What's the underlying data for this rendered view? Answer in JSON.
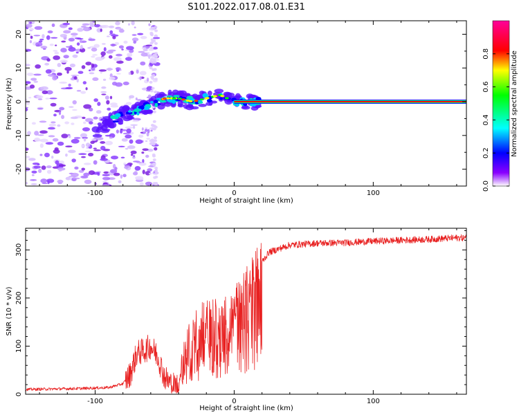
{
  "chart_data": [
    {
      "type": "heatmap",
      "title": "S101.2022.017.08.01.E31",
      "xlabel": "Height of straight line (km)",
      "ylabel": "Frequency (Hz)",
      "xlim": [
        -150,
        167
      ],
      "ylim": [
        -25,
        24
      ],
      "xticks": [
        -100,
        0,
        100
      ],
      "yticks": [
        -20,
        -10,
        0,
        10,
        20
      ],
      "colorbar": {
        "label": "Normalized spectral amplitude",
        "range": [
          0,
          1
        ],
        "ticks": [
          "0.0",
          "0.2",
          "0.4",
          "0.6",
          "0.8"
        ],
        "colormap": [
          "#ffffff",
          "#8a00ff",
          "#0000ff",
          "#00ffff",
          "#00ff00",
          "#ffff00",
          "#ff0000",
          "#ff0099"
        ]
      },
      "main_line": {
        "y": 0,
        "x_start": 0,
        "x_end": 167,
        "color": "#ff0000"
      },
      "ridge": {
        "x": [
          -100,
          -90,
          -80,
          -70,
          -60,
          -50,
          -40,
          -30,
          -20,
          -10,
          0
        ],
        "y": [
          -9,
          -6,
          -4,
          -3,
          -1,
          1,
          1,
          0,
          1,
          2,
          0
        ]
      }
    },
    {
      "type": "line",
      "xlabel": "Height of straight line (km)",
      "ylabel": "SNR (10 * v/v)",
      "xlim": [
        -150,
        167
      ],
      "ylim": [
        0,
        345
      ],
      "xticks": [
        -100,
        0,
        100
      ],
      "yticks": [
        0,
        100,
        200,
        300
      ],
      "series": [
        {
          "name": "SNR",
          "color": "#e82020",
          "x": [
            -150,
            -110,
            -90,
            -80,
            -75,
            -70,
            -65,
            -60,
            -55,
            -50,
            -45,
            -40,
            -35,
            -30,
            -25,
            -20,
            -15,
            -10,
            -5,
            0,
            5,
            10,
            15,
            20,
            25,
            30,
            40,
            50,
            60,
            80,
            100,
            120,
            140,
            160,
            167
          ],
          "y": [
            10,
            12,
            14,
            22,
            40,
            85,
            90,
            100,
            80,
            35,
            20,
            18,
            85,
            120,
            140,
            155,
            160,
            150,
            160,
            180,
            200,
            225,
            255,
            275,
            295,
            300,
            310,
            312,
            314,
            315,
            318,
            320,
            322,
            325,
            325
          ]
        }
      ]
    }
  ]
}
